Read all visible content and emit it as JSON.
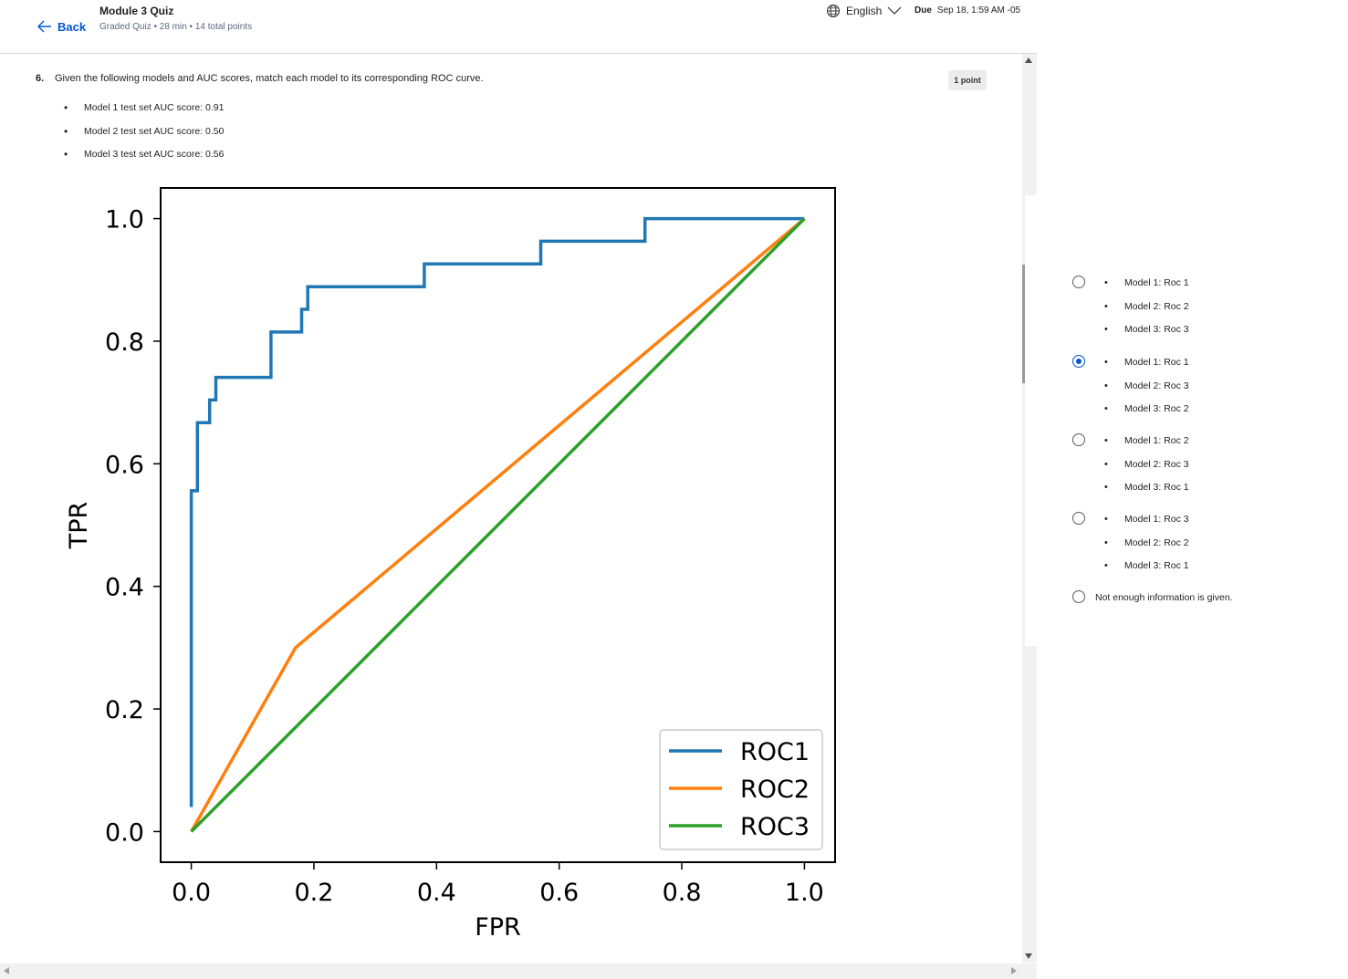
{
  "header": {
    "back_label": "Back",
    "quiz_title": "Module 3 Quiz",
    "quiz_meta": "Graded Quiz • 28 min • 14 total points",
    "language": "English",
    "due_label": "Due",
    "due_date": "Sep 18, 1:59 AM -05"
  },
  "question": {
    "number": "6.",
    "text": "Given the following models and AUC scores, match each model to its corresponding ROC curve.",
    "points": "1 point",
    "auc_items": [
      "Model 1 test set AUC score: 0.91",
      "Model 2 test set AUC score: 0.50",
      "Model 3 test set AUC score: 0.56"
    ]
  },
  "chart_data": {
    "type": "line",
    "title": "",
    "xlabel": "FPR",
    "ylabel": "TPR",
    "xlim": [
      -0.05,
      1.05
    ],
    "ylim": [
      -0.05,
      1.05
    ],
    "xticks": [
      "0.0",
      "0.2",
      "0.4",
      "0.6",
      "0.8",
      "1.0"
    ],
    "yticks": [
      "0.0",
      "0.2",
      "0.4",
      "0.6",
      "0.8",
      "1.0"
    ],
    "legend_position": "bottom-right",
    "grid": false,
    "series": [
      {
        "name": "ROC1",
        "color": "#1f77b4",
        "x": [
          0.0,
          0.0,
          0.01,
          0.01,
          0.03,
          0.03,
          0.04,
          0.04,
          0.13,
          0.13,
          0.18,
          0.18,
          0.19,
          0.19,
          0.38,
          0.38,
          0.57,
          0.57,
          0.74,
          0.74,
          1.0
        ],
        "y": [
          0.04,
          0.556,
          0.556,
          0.667,
          0.667,
          0.704,
          0.704,
          0.741,
          0.741,
          0.815,
          0.815,
          0.852,
          0.852,
          0.889,
          0.889,
          0.926,
          0.926,
          0.963,
          0.963,
          1.0,
          1.0
        ]
      },
      {
        "name": "ROC2",
        "color": "#ff7f0e",
        "x": [
          0.0,
          0.17,
          1.0
        ],
        "y": [
          0.0,
          0.3,
          1.0
        ]
      },
      {
        "name": "ROC3",
        "color": "#2ca02c",
        "x": [
          0.0,
          1.0
        ],
        "y": [
          0.0,
          1.0
        ]
      }
    ]
  },
  "answers": {
    "options": [
      {
        "lines": [
          "Model 1: Roc 1",
          "Model 2: Roc 2",
          "Model 3: Roc 3"
        ],
        "checked": false
      },
      {
        "lines": [
          "Model 1: Roc 1",
          "Model 2: Roc 3",
          "Model 3: Roc 2"
        ],
        "checked": true
      },
      {
        "lines": [
          "Model 1: Roc 2",
          "Model 2: Roc 3",
          "Model 3: Roc 1"
        ],
        "checked": false
      },
      {
        "lines": [
          "Model 1: Roc 3",
          "Model 2: Roc 2",
          "Model 3: Roc 1"
        ],
        "checked": false
      }
    ],
    "not_enough": "Not enough information is given."
  }
}
